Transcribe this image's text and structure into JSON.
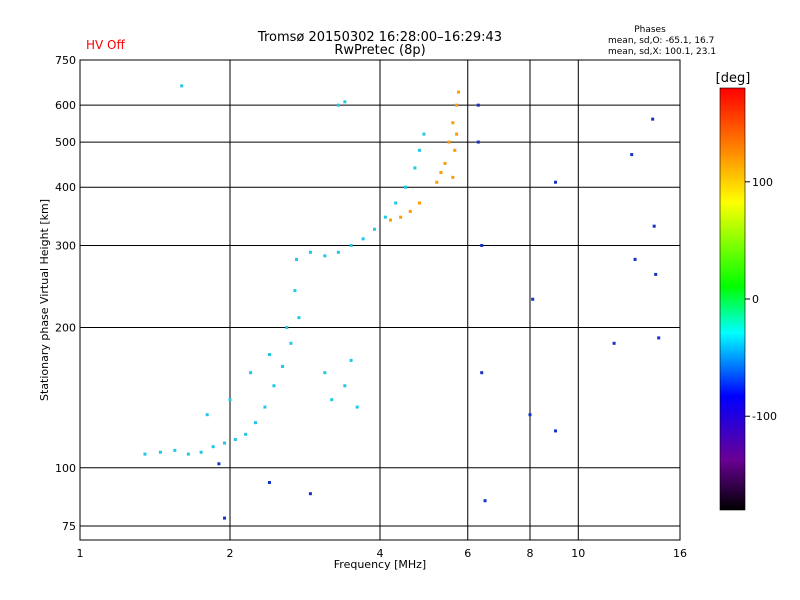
{
  "status_label": "HV Off",
  "status_color": "#ff0000",
  "phase_box": {
    "title": "Phases",
    "line_o": "mean, sd,O: -65.1, 16.7",
    "line_x": "mean, sd,X: 100.1, 23.1"
  },
  "chart_data": {
    "type": "scatter",
    "title": "Tromsø 20150302 16:28:00–16:29:43",
    "subtitle": "RwPretec (8p)",
    "xlabel": "Frequency [MHz]",
    "ylabel": "Stationary phase Virtual Height [km]",
    "x_scale": "log",
    "y_scale": "log",
    "xlim": [
      1,
      16
    ],
    "ylim": [
      70,
      750
    ],
    "x_ticks": [
      1,
      2,
      4,
      6,
      8,
      10,
      16
    ],
    "x_tick_labels": [
      "1",
      "2",
      "4",
      "6",
      "8",
      "10",
      "16"
    ],
    "y_ticks": [
      75,
      100,
      200,
      300,
      400,
      500,
      600,
      750
    ],
    "y_tick_labels": [
      "75",
      "100",
      "200",
      "300",
      "400",
      "500",
      "600",
      "750"
    ],
    "grid": true,
    "colorbar": {
      "label": "[deg]",
      "range": [
        -180,
        180
      ],
      "ticks": [
        100,
        0,
        -100
      ],
      "tick_labels": [
        "100",
        "0",
        "-100"
      ]
    },
    "series": [
      {
        "name": "",
        "points": [
          [
            1.35,
            107
          ],
          [
            1.45,
            108
          ],
          [
            1.55,
            109
          ],
          [
            1.65,
            107
          ],
          [
            1.75,
            108
          ],
          [
            1.85,
            111
          ],
          [
            1.95,
            113
          ],
          [
            2.05,
            115
          ],
          [
            2.15,
            118
          ],
          [
            2.25,
            125
          ],
          [
            2.35,
            135
          ],
          [
            2.45,
            150
          ],
          [
            2.55,
            165
          ],
          [
            2.65,
            185
          ],
          [
            2.75,
            210
          ],
          [
            1.8,
            130
          ],
          [
            2.0,
            140
          ],
          [
            2.2,
            160
          ],
          [
            2.4,
            175
          ],
          [
            2.6,
            200
          ],
          [
            2.7,
            240
          ],
          [
            2.72,
            280
          ],
          [
            2.9,
            290
          ],
          [
            3.1,
            285
          ],
          [
            3.3,
            290
          ],
          [
            3.5,
            300
          ],
          [
            3.7,
            310
          ],
          [
            3.9,
            325
          ],
          [
            4.1,
            345
          ],
          [
            4.3,
            370
          ],
          [
            4.5,
            400
          ],
          [
            4.7,
            440
          ],
          [
            4.8,
            480
          ],
          [
            4.9,
            520
          ],
          [
            3.1,
            160
          ],
          [
            3.2,
            140
          ],
          [
            3.4,
            150
          ],
          [
            3.5,
            170
          ],
          [
            3.6,
            135
          ],
          [
            3.3,
            600
          ],
          [
            3.4,
            610
          ],
          [
            1.6,
            660
          ]
        ]
      },
      {
        "name": "",
        "points": [
          [
            4.2,
            340
          ],
          [
            4.4,
            345
          ],
          [
            4.6,
            355
          ],
          [
            4.8,
            370
          ],
          [
            5.2,
            410
          ],
          [
            5.4,
            450
          ],
          [
            5.5,
            500
          ],
          [
            5.6,
            550
          ],
          [
            5.7,
            600
          ],
          [
            5.75,
            640
          ],
          [
            5.6,
            420
          ],
          [
            5.3,
            430
          ],
          [
            5.65,
            480
          ],
          [
            5.7,
            520
          ]
        ]
      },
      {
        "name": "",
        "points": [
          [
            6.3,
            600
          ],
          [
            6.3,
            500
          ],
          [
            6.4,
            300
          ],
          [
            6.4,
            160
          ],
          [
            6.5,
            85
          ],
          [
            8.0,
            130
          ],
          [
            8.1,
            230
          ],
          [
            9.0,
            410
          ],
          [
            9.0,
            120
          ],
          [
            11.8,
            185
          ],
          [
            14.1,
            560
          ],
          [
            14.2,
            330
          ],
          [
            14.3,
            260
          ],
          [
            14.5,
            190
          ],
          [
            13.0,
            280
          ],
          [
            12.8,
            470
          ],
          [
            1.9,
            102
          ],
          [
            2.4,
            93
          ],
          [
            1.95,
            78
          ],
          [
            2.9,
            88
          ]
        ]
      }
    ]
  }
}
